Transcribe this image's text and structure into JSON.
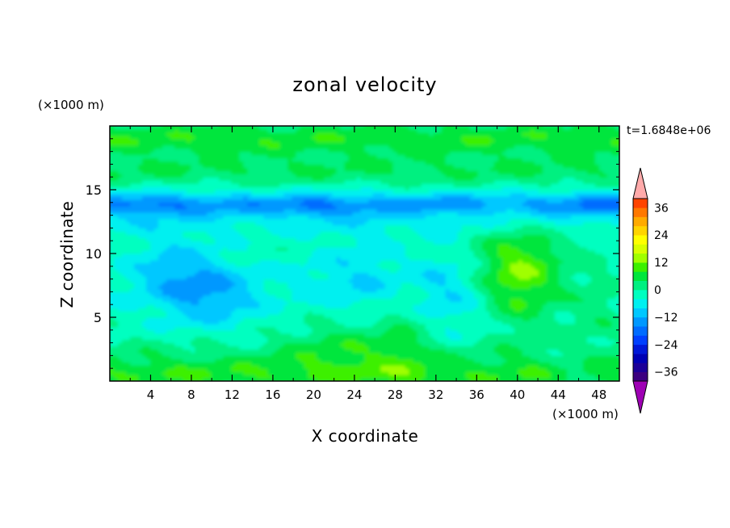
{
  "chart_data": {
    "type": "heatmap",
    "title": "zonal velocity",
    "xlabel": "X coordinate",
    "ylabel": "Z coordinate",
    "x_unit": "(×1000 m)",
    "y_unit": "(×1000 m)",
    "time_label": "t=1.6848e+06",
    "xlim": [
      0,
      50
    ],
    "ylim": [
      0,
      20
    ],
    "x_ticks": [
      4,
      8,
      12,
      16,
      20,
      24,
      28,
      32,
      36,
      40,
      44,
      48
    ],
    "y_ticks": [
      5,
      10,
      15
    ],
    "colorbar": {
      "min": -40,
      "max": 40,
      "step": 4,
      "tick_values": [
        36,
        24,
        12,
        0,
        -12,
        -24,
        -36
      ],
      "tick_labels": [
        "36",
        "24",
        "12",
        "0",
        "−12",
        "−24",
        "−36"
      ],
      "colors": [
        "#3c0080",
        "#1c0098",
        "#0000b4",
        "#0018d8",
        "#0040ff",
        "#006cff",
        "#0098ff",
        "#00c8ff",
        "#00f0f0",
        "#00ffc0",
        "#00f080",
        "#00e63c",
        "#3cf000",
        "#a0ff00",
        "#d8ff00",
        "#ffff00",
        "#ffd400",
        "#ffaa00",
        "#ff7800",
        "#ff4400"
      ],
      "under_color": "#9e00b4",
      "over_color": "#ffaaaa"
    },
    "grid": false,
    "field_summary": [
      {
        "region": "z 18-20 km",
        "u_range": [
          4,
          12
        ]
      },
      {
        "region": "z 15-18 km",
        "u_range": [
          0,
          8
        ]
      },
      {
        "region": "z 12-15 km",
        "u_range": [
          -16,
          -8
        ]
      },
      {
        "region": "z 3-12 km",
        "u_range": [
          -12,
          4
        ]
      },
      {
        "region": "z 0-3 km",
        "u_range": [
          0,
          12
        ]
      },
      {
        "region": "core near x 40, z 8",
        "u_range": [
          8,
          12
        ]
      },
      {
        "region": "core near x 10, z 7",
        "u_range": [
          -16,
          -12
        ]
      }
    ]
  }
}
